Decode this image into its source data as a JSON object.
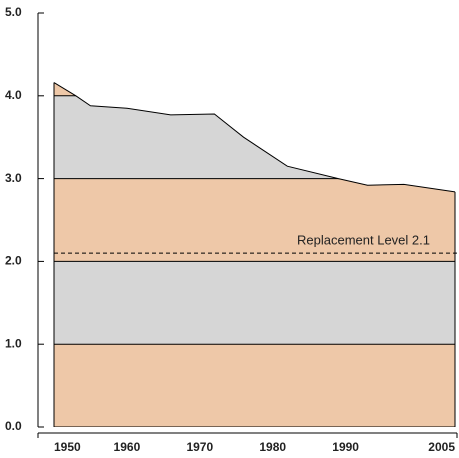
{
  "chart_data": {
    "type": "area",
    "x": [
      1950,
      1953,
      1955,
      1960,
      1966,
      1972,
      1976,
      1982,
      1989,
      1993,
      1998,
      2005
    ],
    "values": [
      4.16,
      4.0,
      3.88,
      3.85,
      3.77,
      3.78,
      3.5,
      3.15,
      3.0,
      2.92,
      2.93,
      2.84
    ],
    "xlim": [
      1950,
      2005
    ],
    "xticks": [
      1950,
      1960,
      1970,
      1980,
      1990,
      2005
    ],
    "ylim": [
      0,
      5
    ],
    "yticks": [
      {
        "value": 0,
        "label": "0.0"
      },
      {
        "value": 1,
        "label": "1.0"
      },
      {
        "value": 2,
        "label": "2.0"
      },
      {
        "value": 3,
        "label": "3.0"
      },
      {
        "value": 4,
        "label": "4.0"
      },
      {
        "value": 5,
        "label": "5.0"
      }
    ],
    "band_colors": [
      "#eec8a8",
      "#d6d6d6"
    ],
    "reference_line": {
      "value": 2.1,
      "label": "Replacement Level 2.1"
    }
  }
}
